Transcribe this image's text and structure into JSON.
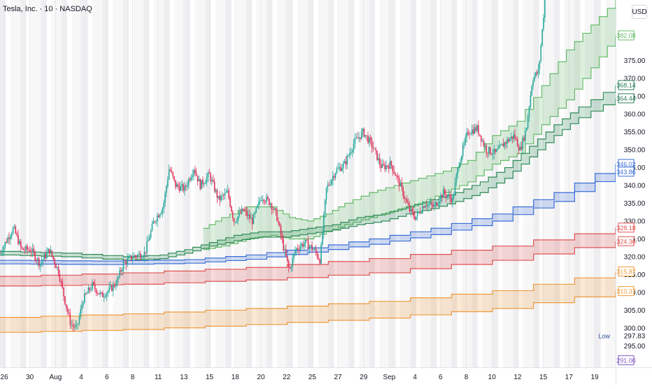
{
  "header": {
    "title": "Tesla, Inc. · 10 · NASDAQ",
    "currency": "USD"
  },
  "chart_data": {
    "type": "candlestick",
    "price_range": [
      289,
      392
    ],
    "grid": "vertical-only",
    "price_ticks": [
      295,
      300,
      305,
      310,
      315,
      320,
      325,
      330,
      335,
      340,
      345,
      350,
      355,
      360,
      365,
      370,
      375
    ],
    "time_ticks": [
      "26",
      "30",
      "Aug",
      "4",
      "6",
      "8",
      "11",
      "13",
      "15",
      "18",
      "20",
      "22",
      "25",
      "27",
      "29",
      "Sep",
      "4",
      "6",
      "8",
      "10",
      "12",
      "15",
      "17",
      "19"
    ],
    "price_labels": [
      {
        "text": "382.08",
        "color": "#66bb6a"
      },
      {
        "text": "368.14",
        "color": "#2e7d5b"
      },
      {
        "text": "364.44",
        "color": "#2e7d5b"
      },
      {
        "text": "346.02",
        "color": "#3b6fd6"
      },
      {
        "text": "343.86",
        "color": "#3b6fd6"
      },
      {
        "text": "328.18",
        "color": "#e05252"
      },
      {
        "text": "324.36",
        "color": "#e05252"
      },
      {
        "text": "315.87",
        "color": "#ef9a3c"
      },
      {
        "text": "310.37",
        "color": "#ef9a3c"
      },
      {
        "text": "291.00",
        "color": "#7e57c2"
      }
    ],
    "low_marker": {
      "label": "Low",
      "value": "297.83"
    },
    "bands": [
      {
        "color": "#66bb6a",
        "upper": [
          [
            0.33,
            328
          ],
          [
            0.36,
            331
          ],
          [
            0.4,
            334
          ],
          [
            0.44,
            334
          ],
          [
            0.47,
            331
          ],
          [
            0.5,
            330
          ],
          [
            0.53,
            332
          ],
          [
            0.56,
            335
          ],
          [
            0.6,
            338
          ],
          [
            0.64,
            340
          ],
          [
            0.68,
            342
          ],
          [
            0.72,
            344
          ],
          [
            0.76,
            347
          ],
          [
            0.8,
            354
          ],
          [
            0.84,
            358
          ],
          [
            0.88,
            368
          ],
          [
            0.92,
            378
          ],
          [
            0.96,
            385
          ],
          [
            1.0,
            392
          ]
        ],
        "lower": [
          [
            0.33,
            322
          ],
          [
            0.36,
            323
          ],
          [
            0.4,
            325
          ],
          [
            0.44,
            326
          ],
          [
            0.47,
            325
          ],
          [
            0.5,
            325
          ],
          [
            0.53,
            327
          ],
          [
            0.56,
            329
          ],
          [
            0.6,
            331
          ],
          [
            0.64,
            333
          ],
          [
            0.68,
            335
          ],
          [
            0.72,
            338
          ],
          [
            0.76,
            341
          ],
          [
            0.8,
            346
          ],
          [
            0.84,
            349
          ],
          [
            0.88,
            357
          ],
          [
            0.92,
            364
          ],
          [
            0.96,
            373
          ],
          [
            1.0,
            382.08
          ]
        ]
      },
      {
        "color": "#2e8b57",
        "upper": [
          [
            0.0,
            321.5
          ],
          [
            0.1,
            321.0
          ],
          [
            0.2,
            320.0
          ],
          [
            0.26,
            320.5
          ],
          [
            0.3,
            322
          ],
          [
            0.34,
            324
          ],
          [
            0.38,
            326
          ],
          [
            0.42,
            327
          ],
          [
            0.46,
            327
          ],
          [
            0.5,
            328
          ],
          [
            0.54,
            329
          ],
          [
            0.58,
            331
          ],
          [
            0.62,
            332
          ],
          [
            0.66,
            334
          ],
          [
            0.7,
            336
          ],
          [
            0.74,
            338
          ],
          [
            0.78,
            341
          ],
          [
            0.82,
            345
          ],
          [
            0.86,
            351
          ],
          [
            0.9,
            357
          ],
          [
            0.94,
            362
          ],
          [
            1.0,
            368.14
          ]
        ],
        "lower": [
          [
            0.0,
            320.5
          ],
          [
            0.1,
            320.0
          ],
          [
            0.2,
            319.0
          ],
          [
            0.26,
            319.5
          ],
          [
            0.3,
            321
          ],
          [
            0.34,
            323
          ],
          [
            0.38,
            324.5
          ],
          [
            0.42,
            325.5
          ],
          [
            0.46,
            325.5
          ],
          [
            0.5,
            326.5
          ],
          [
            0.54,
            327.5
          ],
          [
            0.58,
            329
          ],
          [
            0.62,
            330
          ],
          [
            0.66,
            332
          ],
          [
            0.7,
            333.5
          ],
          [
            0.74,
            335.5
          ],
          [
            0.78,
            338
          ],
          [
            0.82,
            342
          ],
          [
            0.86,
            348
          ],
          [
            0.9,
            354
          ],
          [
            0.94,
            359
          ],
          [
            1.0,
            364.44
          ]
        ]
      },
      {
        "color": "#3b6fd6",
        "upper": [
          [
            0.0,
            319
          ],
          [
            0.15,
            318.8
          ],
          [
            0.3,
            319.2
          ],
          [
            0.4,
            320.5
          ],
          [
            0.5,
            322.5
          ],
          [
            0.6,
            325
          ],
          [
            0.7,
            328
          ],
          [
            0.8,
            332
          ],
          [
            0.9,
            338
          ],
          [
            1.0,
            346.02
          ]
        ],
        "lower": [
          [
            0.0,
            318
          ],
          [
            0.15,
            317.8
          ],
          [
            0.3,
            318.2
          ],
          [
            0.4,
            319.3
          ],
          [
            0.5,
            321.3
          ],
          [
            0.6,
            323.5
          ],
          [
            0.7,
            326.2
          ],
          [
            0.8,
            330
          ],
          [
            0.9,
            335.5
          ],
          [
            1.0,
            343.86
          ]
        ]
      },
      {
        "color": "#e05252",
        "upper": [
          [
            0.0,
            314.5
          ],
          [
            0.2,
            315.5
          ],
          [
            0.4,
            317.0
          ],
          [
            0.6,
            319.5
          ],
          [
            0.8,
            323.0
          ],
          [
            1.0,
            328.18
          ]
        ],
        "lower": [
          [
            0.0,
            311.8
          ],
          [
            0.2,
            312.3
          ],
          [
            0.4,
            313.5
          ],
          [
            0.6,
            315.5
          ],
          [
            0.8,
            319.0
          ],
          [
            1.0,
            324.36
          ]
        ]
      },
      {
        "color": "#ef9a3c",
        "upper": [
          [
            0.0,
            303.0
          ],
          [
            0.2,
            304.0
          ],
          [
            0.4,
            305.5
          ],
          [
            0.6,
            307.5
          ],
          [
            0.8,
            310.5
          ],
          [
            1.0,
            315.87
          ]
        ],
        "lower": [
          [
            0.0,
            298.8
          ],
          [
            0.2,
            299.6
          ],
          [
            0.4,
            301.0
          ],
          [
            0.6,
            302.8
          ],
          [
            0.8,
            305.5
          ],
          [
            1.0,
            310.37
          ]
        ]
      }
    ],
    "price_path": [
      [
        0.0,
        321
      ],
      [
        0.015,
        326
      ],
      [
        0.022,
        328
      ],
      [
        0.035,
        322
      ],
      [
        0.05,
        322
      ],
      [
        0.065,
        318
      ],
      [
        0.08,
        322
      ],
      [
        0.095,
        316
      ],
      [
        0.105,
        308
      ],
      [
        0.115,
        301
      ],
      [
        0.125,
        300
      ],
      [
        0.135,
        308
      ],
      [
        0.15,
        312
      ],
      [
        0.165,
        309
      ],
      [
        0.18,
        311
      ],
      [
        0.19,
        313
      ],
      [
        0.2,
        318
      ],
      [
        0.215,
        320
      ],
      [
        0.235,
        321
      ],
      [
        0.25,
        330
      ],
      [
        0.265,
        334
      ],
      [
        0.275,
        345
      ],
      [
        0.285,
        340
      ],
      [
        0.3,
        339
      ],
      [
        0.315,
        345
      ],
      [
        0.325,
        340
      ],
      [
        0.34,
        343
      ],
      [
        0.355,
        336
      ],
      [
        0.37,
        338
      ],
      [
        0.38,
        330
      ],
      [
        0.395,
        333
      ],
      [
        0.41,
        330
      ],
      [
        0.425,
        337
      ],
      [
        0.44,
        335
      ],
      [
        0.45,
        331
      ],
      [
        0.46,
        323
      ],
      [
        0.47,
        316
      ],
      [
        0.48,
        322
      ],
      [
        0.495,
        324
      ],
      [
        0.51,
        322
      ],
      [
        0.52,
        319
      ],
      [
        0.53,
        339
      ],
      [
        0.545,
        344
      ],
      [
        0.56,
        346
      ],
      [
        0.575,
        352
      ],
      [
        0.59,
        355
      ],
      [
        0.605,
        351
      ],
      [
        0.62,
        345
      ],
      [
        0.635,
        346
      ],
      [
        0.65,
        340
      ],
      [
        0.665,
        333
      ],
      [
        0.675,
        331
      ],
      [
        0.69,
        335
      ],
      [
        0.705,
        334
      ],
      [
        0.72,
        338
      ],
      [
        0.735,
        336
      ],
      [
        0.745,
        346
      ],
      [
        0.76,
        355
      ],
      [
        0.775,
        356
      ],
      [
        0.79,
        350
      ],
      [
        0.805,
        349
      ],
      [
        0.82,
        352
      ],
      [
        0.835,
        354
      ],
      [
        0.845,
        350
      ],
      [
        0.855,
        356
      ],
      [
        0.865,
        370
      ],
      [
        0.875,
        372
      ],
      [
        0.885,
        392
      ]
    ]
  }
}
